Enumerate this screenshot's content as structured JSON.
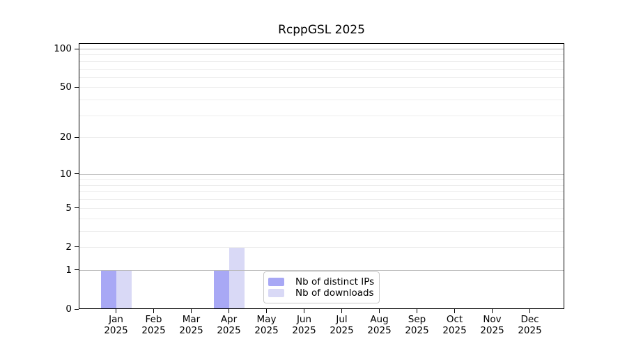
{
  "chart_data": {
    "type": "bar",
    "title": "RcppGSL 2025",
    "categories": [
      "Jan 2025",
      "Feb 2025",
      "Mar 2025",
      "Apr 2025",
      "May 2025",
      "Jun 2025",
      "Jul 2025",
      "Aug 2025",
      "Sep 2025",
      "Oct 2025",
      "Nov 2025",
      "Dec 2025"
    ],
    "series": [
      {
        "name": "Nb of distinct IPs",
        "color": "#a8a8f5",
        "values": [
          1,
          0,
          0,
          1,
          0,
          0,
          0,
          0,
          0,
          0,
          0,
          0
        ]
      },
      {
        "name": "Nb of downloads",
        "color": "#d9d9f6",
        "values": [
          1,
          0,
          0,
          2,
          0,
          0,
          0,
          0,
          0,
          0,
          0,
          0
        ]
      }
    ],
    "y_axis": {
      "scale": "log1p",
      "ticks": [
        0,
        1,
        2,
        5,
        10,
        20,
        50,
        100
      ],
      "max": 100,
      "major_gridlines": [
        1,
        10,
        100
      ],
      "minor_gridlines": [
        2,
        3,
        4,
        5,
        6,
        7,
        8,
        9,
        20,
        30,
        40,
        50,
        60,
        70,
        80,
        90
      ]
    },
    "legend": {
      "position": "bottom-center"
    },
    "colors": {
      "major_grid": "#b8b8b8",
      "minor_grid": "#ededed",
      "axis": "#000000",
      "text": "#000000",
      "legend_border": "#c9c9c9",
      "background": "#ffffff"
    }
  }
}
